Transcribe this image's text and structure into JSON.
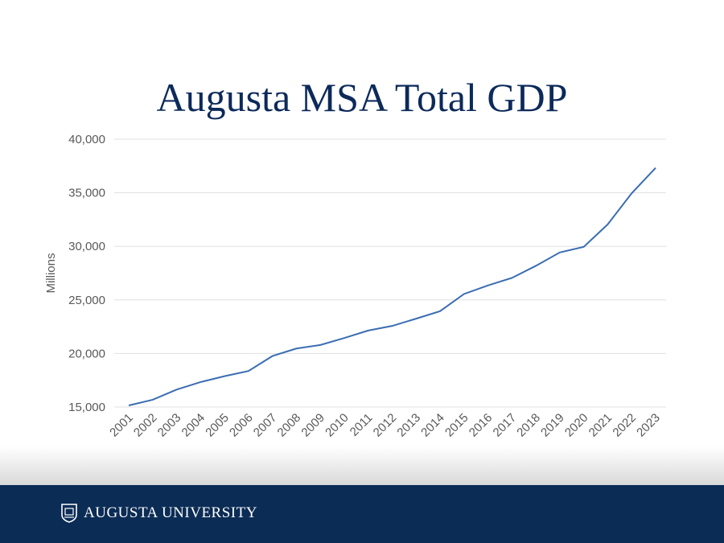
{
  "chart_data": {
    "type": "line",
    "title": "Augusta MSA Total GDP",
    "xlabel": "",
    "ylabel": "Millions",
    "ylim": [
      15000,
      40000
    ],
    "yticks": [
      15000,
      20000,
      25000,
      30000,
      35000,
      40000
    ],
    "ytick_labels": [
      "15,000",
      "20,000",
      "25,000",
      "30,000",
      "35,000",
      "40,000"
    ],
    "grid": true,
    "categories": [
      "2001",
      "2002",
      "2003",
      "2004",
      "2005",
      "2006",
      "2007",
      "2008",
      "2009",
      "2010",
      "2011",
      "2012",
      "2013",
      "2014",
      "2015",
      "2016",
      "2017",
      "2018",
      "2019",
      "2020",
      "2021",
      "2022",
      "2023"
    ],
    "series": [
      {
        "values": [
          15150,
          15680,
          16630,
          17330,
          17880,
          18360,
          19760,
          20460,
          20790,
          21440,
          22140,
          22570,
          23250,
          23950,
          25550,
          26350,
          27050,
          28180,
          29430,
          29950,
          32050,
          34950,
          37320
        ],
        "color": "#3a6db3"
      }
    ]
  },
  "footer": {
    "brand": "AUGUSTA UNIVERSITY",
    "icon": "shield-logo-icon",
    "band_color": "#0b2c55"
  }
}
